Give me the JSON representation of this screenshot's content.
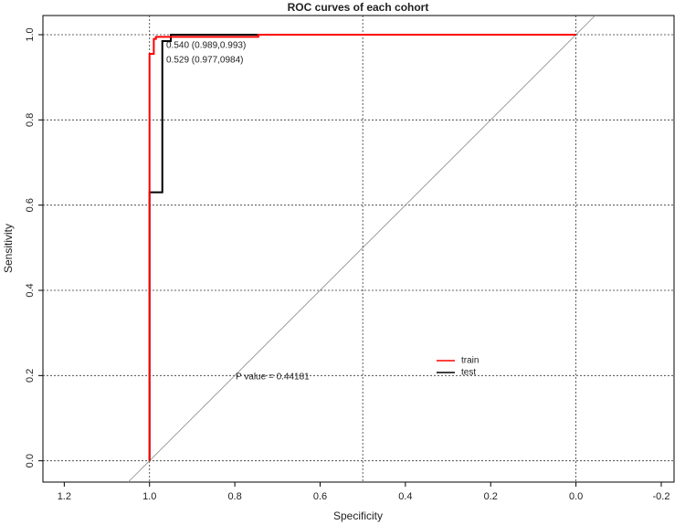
{
  "chart_data": {
    "type": "line",
    "title": "ROC curves of each cohort",
    "x_label": "Specificity",
    "y_label": "Sensitivity",
    "xlim": [
      1.25,
      -0.23
    ],
    "ylim": [
      -0.05,
      1.045
    ],
    "xticks": [
      1.2,
      {
        "value": 1,
        "label": "1.0"
      },
      0.8,
      0.6,
      0.4,
      0.2,
      {
        "value": 0,
        "label": "0.0"
      },
      -0.2
    ],
    "yticks": [
      {
        "value": 0,
        "label": "0.0"
      },
      0.2,
      0.4,
      0.6,
      0.8,
      {
        "value": 1,
        "label": "1.0"
      }
    ],
    "xgrid": [
      1,
      0.5,
      0
    ],
    "grid": true,
    "series": [
      {
        "name": "train",
        "color": "#ff0000",
        "x": [
          1,
          1,
          0.99,
          0.99,
          0.985,
          0.985,
          0.745,
          0.745,
          0
        ],
        "values": [
          0,
          0.955,
          0.955,
          0.99,
          0.99,
          0.995,
          0.995,
          1,
          1
        ]
      },
      {
        "name": "test",
        "color": "#000000",
        "x": [
          1,
          1,
          0.97,
          0.97,
          0.95,
          0.95,
          0
        ],
        "values": [
          0,
          0.63,
          0.63,
          0.985,
          0.985,
          1,
          1
        ]
      }
    ],
    "annotations": [
      "0.540  (0.989,0.993)",
      "0.529  (0.977,0984)",
      "P value = 0.44181"
    ]
  }
}
